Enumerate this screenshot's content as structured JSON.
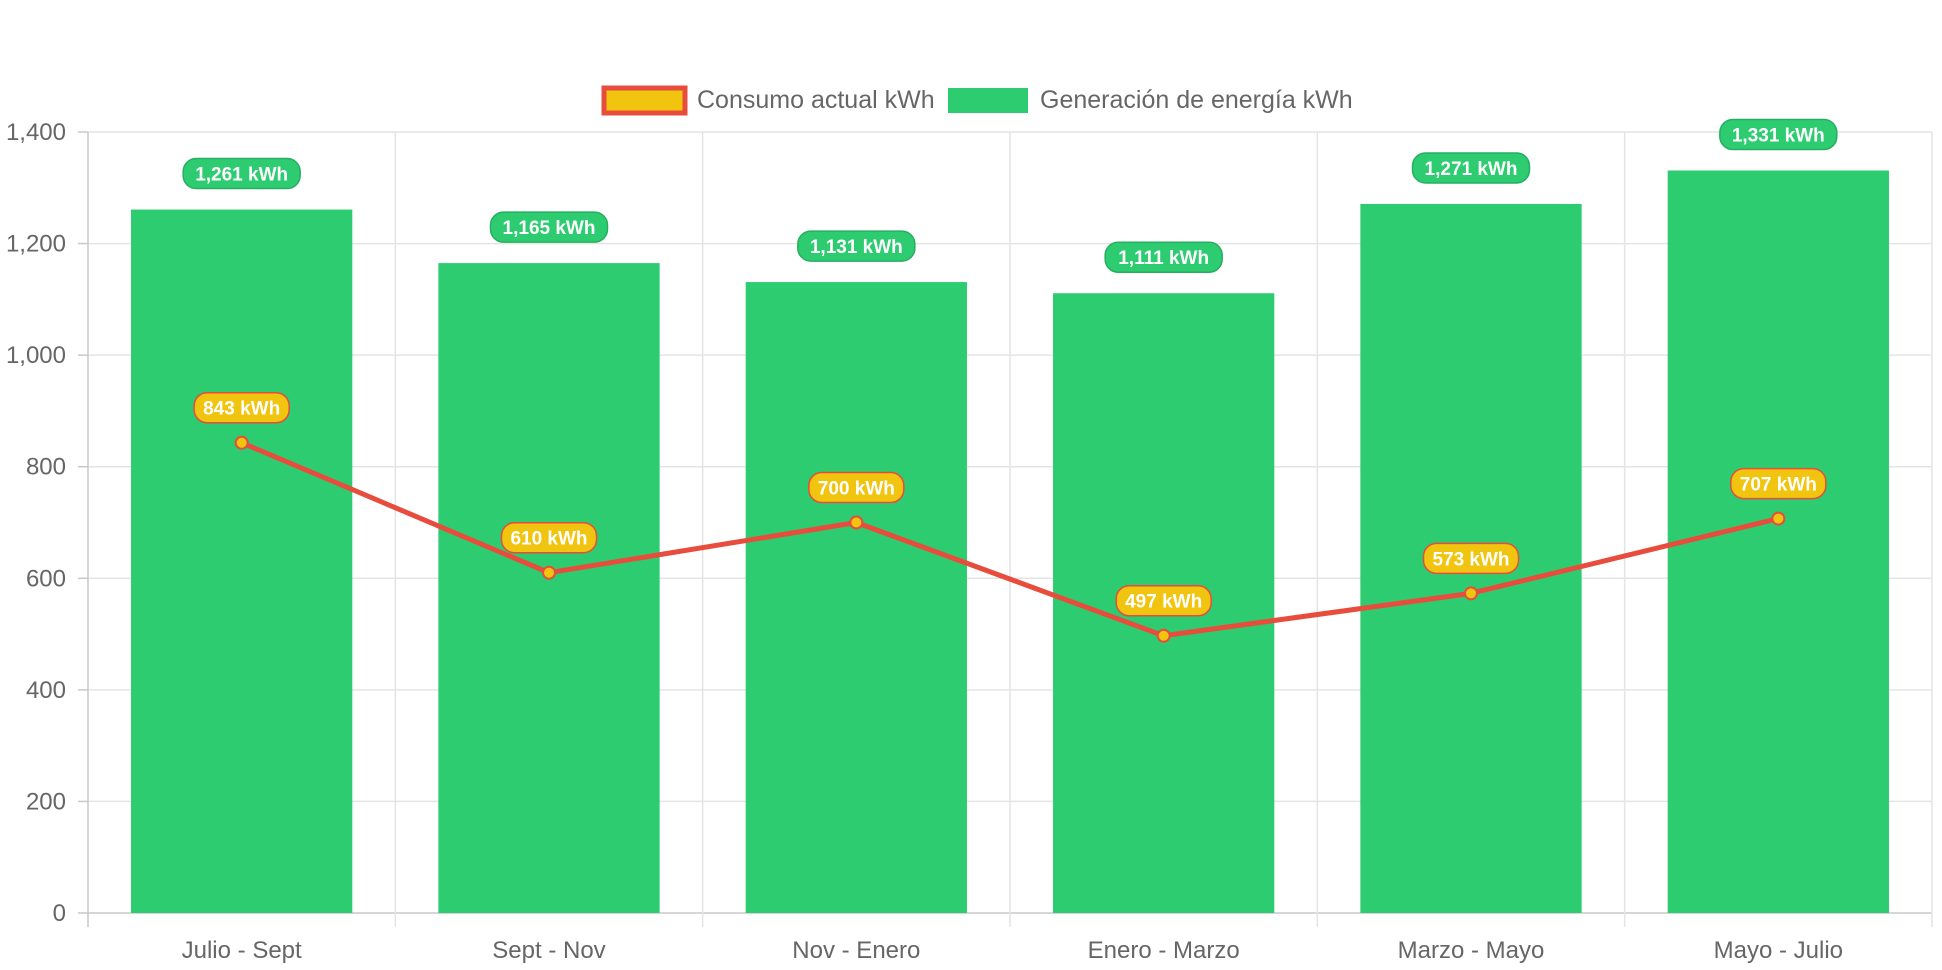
{
  "chart_data": {
    "type": "bar",
    "categories": [
      "Julio - Sept",
      "Sept - Nov",
      "Nov - Enero",
      "Enero - Marzo",
      "Marzo - Mayo",
      "Mayo - Julio"
    ],
    "series": [
      {
        "name": "Consumo actual kWh",
        "type": "line",
        "values": [
          843,
          610,
          700,
          497,
          573,
          707
        ],
        "labels": [
          "843 kWh",
          "610 kWh",
          "700 kWh",
          "497 kWh",
          "573 kWh",
          "707 kWh"
        ],
        "color": "#e74c3c",
        "fill_color": "#f1c40f"
      },
      {
        "name": "Generación de energía kWh",
        "type": "bar",
        "values": [
          1261,
          1165,
          1131,
          1111,
          1271,
          1331
        ],
        "labels": [
          "1,261 kWh",
          "1,165 kWh",
          "1,131 kWh",
          "1,111 kWh",
          "1,271 kWh",
          "1,331 kWh"
        ],
        "color": "#2ecc71",
        "border_color": "#27ae60"
      }
    ],
    "yticks": [
      "0",
      "200",
      "400",
      "600",
      "800",
      "1,000",
      "1,200",
      "1,400"
    ],
    "ylim": [
      0,
      1400
    ],
    "grid": true,
    "legend_position": "top"
  }
}
